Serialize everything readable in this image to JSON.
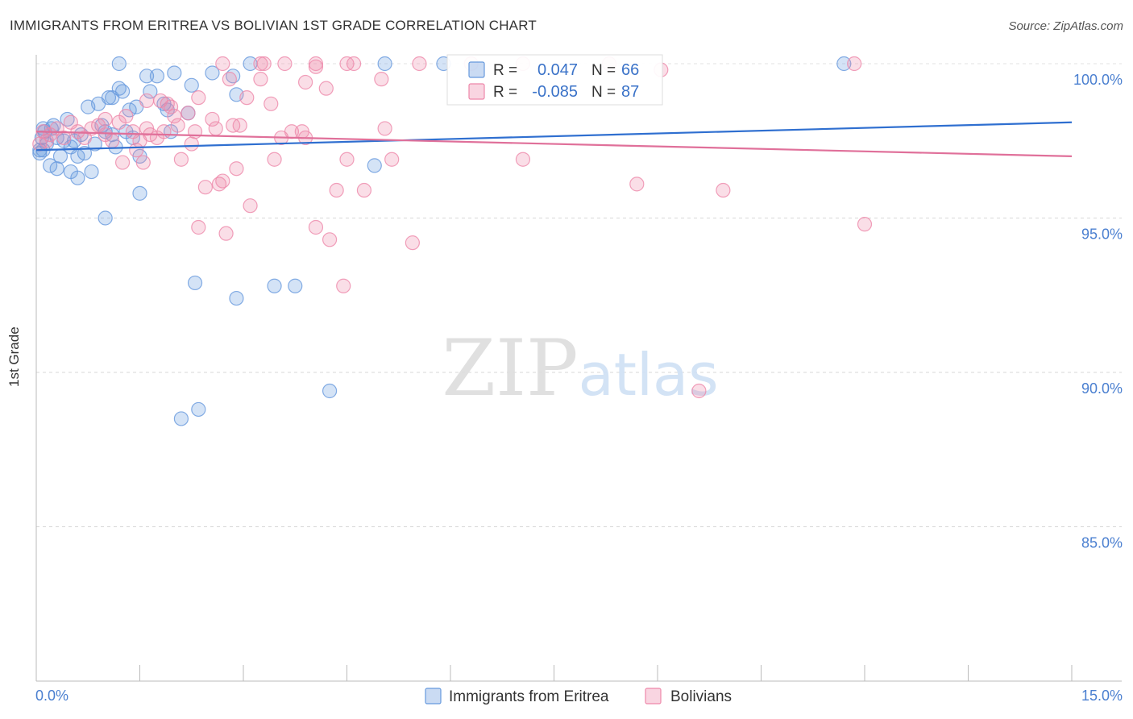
{
  "chart_data": {
    "type": "scatter",
    "title": "IMMIGRANTS FROM ERITREA VS BOLIVIAN 1ST GRADE CORRELATION CHART",
    "source": "Source: ZipAtlas.com",
    "xlabel": "",
    "ylabel": "1st Grade",
    "xlim": [
      0,
      15
    ],
    "ylim": [
      80,
      100.5
    ],
    "x_tick_labels": [
      "0.0%",
      "15.0%"
    ],
    "y_ticks": [
      85,
      90,
      95,
      100
    ],
    "y_tick_labels": [
      "85.0%",
      "90.0%",
      "95.0%",
      "100.0%"
    ],
    "watermark": "ZIPatlas",
    "legend_position": "top-center",
    "legend": [
      {
        "name": "Immigrants from Eritrea",
        "r_label": "R =",
        "r_value": "0.047",
        "n_label": "N =",
        "n_value": "66",
        "color": "#6699dd"
      },
      {
        "name": "Bolivians",
        "r_label": "R =",
        "r_value": "-0.085",
        "n_label": "N =",
        "n_value": "87",
        "color": "#ee88aa"
      }
    ],
    "series": [
      {
        "name": "Immigrants from Eritrea",
        "color": "#6699dd",
        "line_color": "#2f6fd0",
        "trend": {
          "x": [
            0,
            15
          ],
          "y": [
            97.2,
            98.1
          ]
        },
        "points": [
          [
            0.05,
            97.1
          ],
          [
            0.08,
            97.6
          ],
          [
            0.1,
            97.2
          ],
          [
            0.12,
            97.8
          ],
          [
            0.15,
            97.4
          ],
          [
            0.2,
            96.7
          ],
          [
            0.22,
            97.9
          ],
          [
            0.25,
            98.0
          ],
          [
            0.3,
            97.6
          ],
          [
            0.3,
            96.6
          ],
          [
            0.35,
            97.0
          ],
          [
            0.4,
            97.5
          ],
          [
            0.45,
            98.2
          ],
          [
            0.5,
            96.5
          ],
          [
            0.5,
            97.3
          ],
          [
            0.55,
            97.5
          ],
          [
            0.6,
            96.3
          ],
          [
            0.6,
            97.0
          ],
          [
            0.65,
            97.7
          ],
          [
            0.7,
            97.1
          ],
          [
            0.75,
            98.6
          ],
          [
            0.8,
            96.5
          ],
          [
            0.85,
            97.4
          ],
          [
            0.9,
            98.7
          ],
          [
            0.95,
            98.0
          ],
          [
            1.0,
            97.8
          ],
          [
            1.0,
            95.0
          ],
          [
            1.05,
            98.9
          ],
          [
            1.1,
            97.7
          ],
          [
            1.1,
            98.9
          ],
          [
            1.15,
            97.3
          ],
          [
            1.2,
            99.2
          ],
          [
            1.25,
            99.1
          ],
          [
            1.3,
            97.8
          ],
          [
            1.35,
            98.5
          ],
          [
            1.4,
            97.6
          ],
          [
            1.45,
            98.6
          ],
          [
            1.5,
            97.0
          ],
          [
            1.6,
            99.6
          ],
          [
            1.65,
            99.1
          ],
          [
            1.75,
            99.6
          ],
          [
            1.85,
            98.7
          ],
          [
            1.9,
            98.5
          ],
          [
            1.95,
            97.8
          ],
          [
            2.0,
            99.7
          ],
          [
            2.1,
            88.5
          ],
          [
            2.2,
            98.4
          ],
          [
            2.25,
            99.3
          ],
          [
            2.35,
            88.8
          ],
          [
            2.55,
            99.7
          ],
          [
            2.85,
            99.6
          ],
          [
            2.9,
            92.4
          ],
          [
            2.9,
            99.0
          ],
          [
            1.5,
            95.8
          ],
          [
            2.3,
            92.9
          ],
          [
            3.45,
            92.8
          ],
          [
            3.75,
            92.8
          ],
          [
            4.25,
            89.4
          ],
          [
            4.9,
            96.7
          ],
          [
            5.05,
            100.0
          ],
          [
            5.9,
            100.0
          ],
          [
            1.2,
            100.0
          ],
          [
            3.1,
            100.0
          ],
          [
            11.7,
            100.0
          ],
          [
            0.05,
            97.2
          ],
          [
            0.1,
            97.9
          ]
        ]
      },
      {
        "name": "Bolivians",
        "color": "#ee88aa",
        "line_color": "#e0709a",
        "trend": {
          "x": [
            0,
            15
          ],
          "y": [
            97.8,
            97.0
          ]
        },
        "points": [
          [
            0.05,
            97.4
          ],
          [
            0.1,
            97.8
          ],
          [
            0.15,
            97.5
          ],
          [
            0.2,
            97.7
          ],
          [
            0.3,
            97.9
          ],
          [
            0.4,
            97.6
          ],
          [
            0.5,
            98.1
          ],
          [
            0.6,
            97.8
          ],
          [
            0.7,
            97.6
          ],
          [
            0.8,
            97.9
          ],
          [
            0.9,
            98.0
          ],
          [
            1.0,
            97.7
          ],
          [
            1.0,
            98.2
          ],
          [
            1.1,
            97.5
          ],
          [
            1.2,
            98.1
          ],
          [
            1.25,
            96.8
          ],
          [
            1.3,
            98.3
          ],
          [
            1.4,
            97.8
          ],
          [
            1.45,
            97.2
          ],
          [
            1.5,
            97.5
          ],
          [
            1.55,
            96.8
          ],
          [
            1.6,
            98.8
          ],
          [
            1.65,
            97.7
          ],
          [
            1.75,
            97.6
          ],
          [
            1.8,
            98.8
          ],
          [
            1.85,
            97.8
          ],
          [
            1.9,
            98.7
          ],
          [
            1.95,
            98.6
          ],
          [
            2.0,
            98.3
          ],
          [
            2.05,
            98.0
          ],
          [
            2.1,
            96.9
          ],
          [
            2.2,
            98.4
          ],
          [
            2.25,
            97.4
          ],
          [
            2.3,
            97.8
          ],
          [
            2.35,
            98.9
          ],
          [
            2.45,
            96.0
          ],
          [
            2.55,
            98.2
          ],
          [
            2.6,
            97.9
          ],
          [
            2.65,
            96.1
          ],
          [
            2.7,
            96.2
          ],
          [
            2.8,
            99.5
          ],
          [
            2.85,
            98.0
          ],
          [
            2.9,
            96.6
          ],
          [
            2.95,
            98.0
          ],
          [
            3.05,
            98.9
          ],
          [
            3.1,
            95.4
          ],
          [
            3.25,
            99.5
          ],
          [
            3.4,
            98.7
          ],
          [
            3.45,
            96.9
          ],
          [
            3.55,
            97.6
          ],
          [
            3.7,
            97.8
          ],
          [
            3.85,
            97.8
          ],
          [
            3.9,
            99.4
          ],
          [
            4.05,
            94.7
          ],
          [
            4.2,
            99.2
          ],
          [
            4.25,
            94.3
          ],
          [
            4.35,
            95.9
          ],
          [
            4.45,
            92.8
          ],
          [
            4.5,
            96.9
          ],
          [
            4.75,
            95.9
          ],
          [
            5.05,
            97.9
          ],
          [
            5.15,
            96.9
          ],
          [
            5.45,
            94.2
          ],
          [
            2.35,
            94.7
          ],
          [
            2.75,
            94.5
          ],
          [
            7.05,
            96.9
          ],
          [
            8.7,
            96.1
          ],
          [
            9.6,
            89.4
          ],
          [
            9.95,
            95.9
          ],
          [
            12.0,
            94.8
          ],
          [
            3.3,
            100.0
          ],
          [
            3.6,
            100.0
          ],
          [
            4.05,
            100.0
          ],
          [
            4.5,
            100.0
          ],
          [
            5.0,
            99.5
          ],
          [
            5.55,
            100.0
          ],
          [
            6.3,
            100.0
          ],
          [
            7.05,
            100.0
          ],
          [
            8.3,
            100.0
          ],
          [
            9.05,
            99.8
          ],
          [
            11.85,
            100.0
          ],
          [
            2.7,
            100.0
          ],
          [
            3.25,
            100.0
          ],
          [
            4.6,
            100.0
          ],
          [
            4.05,
            99.9
          ],
          [
            3.9,
            97.6
          ],
          [
            1.6,
            97.9
          ]
        ]
      }
    ]
  }
}
